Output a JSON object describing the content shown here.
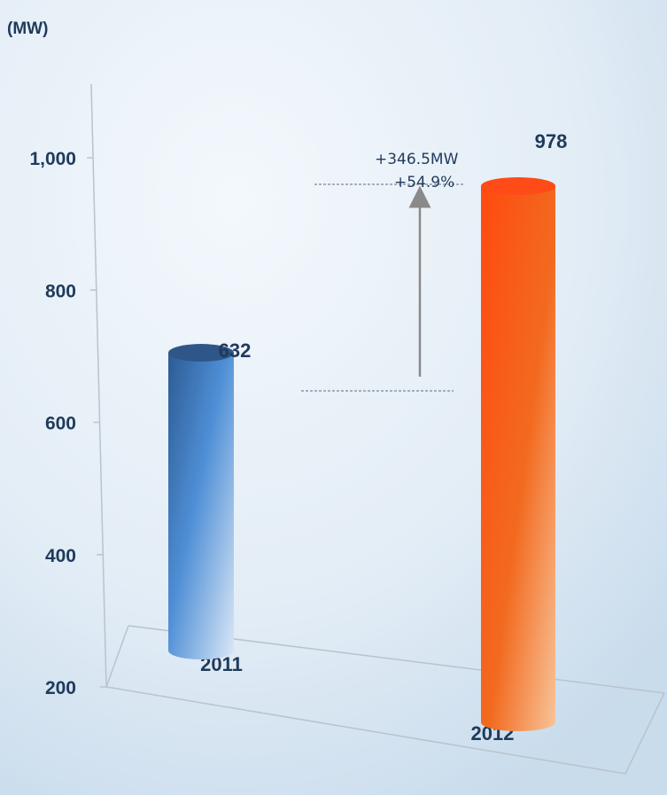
{
  "chart_data": {
    "type": "bar",
    "unit_label": "(MW)",
    "categories": [
      "2011",
      "2012"
    ],
    "values": [
      632,
      978
    ],
    "value_labels": [
      "632",
      "978"
    ],
    "bar_colors": [
      "#4a7fc4",
      "#ff5a14"
    ],
    "ylim": [
      200,
      1100
    ],
    "yticks": [
      {
        "value": 200,
        "label": "200"
      },
      {
        "value": 400,
        "label": "400"
      },
      {
        "value": 600,
        "label": "600"
      },
      {
        "value": 800,
        "label": "800"
      },
      {
        "value": 1000,
        "label": "1,000"
      }
    ],
    "annotation": {
      "line1": "+346.5MW",
      "line2": "+54.9%"
    },
    "grid": false,
    "legend": "none"
  }
}
